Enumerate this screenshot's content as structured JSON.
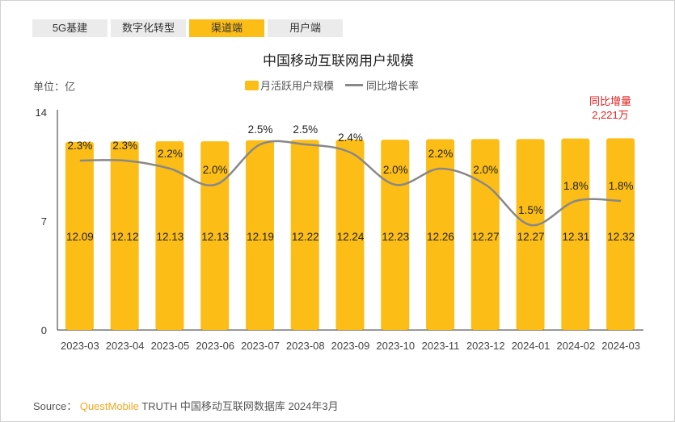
{
  "tabs": [
    {
      "label": "5G基建"
    },
    {
      "label": "数字化转型"
    },
    {
      "label": "渠道端",
      "active": true
    },
    {
      "label": "用户端"
    }
  ],
  "accent": "#fcbd16",
  "unit": "单位：亿",
  "note": {
    "line1": "同比增量",
    "line2": "2,221万"
  },
  "source": {
    "prefix": "Source：",
    "brand": "QuestMobile",
    "rest": "TRUTH 中国移动互联网数据库 2024年3月"
  },
  "chart_data": {
    "type": "bar",
    "title": "中国移动互联网用户规模",
    "categories": [
      "2023-03",
      "2023-04",
      "2023-05",
      "2023-06",
      "2023-07",
      "2023-08",
      "2023-09",
      "2023-10",
      "2023-11",
      "2023-12",
      "2024-01",
      "2024-02",
      "2024-03"
    ],
    "series": [
      {
        "name": "月活跃用户规模",
        "type": "bar",
        "color": "#fcbd16",
        "values": [
          12.09,
          12.12,
          12.13,
          12.13,
          12.19,
          12.22,
          12.24,
          12.23,
          12.26,
          12.27,
          12.27,
          12.31,
          12.32
        ]
      },
      {
        "name": "同比增长率",
        "type": "line",
        "color": "#888888",
        "unit": "%",
        "values": [
          2.3,
          2.3,
          2.2,
          2.0,
          2.5,
          2.5,
          2.4,
          2.0,
          2.2,
          2.0,
          1.5,
          1.8,
          1.8
        ]
      }
    ],
    "ylim": [
      0,
      14
    ],
    "yticks": [
      0,
      7,
      14
    ],
    "secondary_axis_hidden": true,
    "grid": false,
    "legend": "top-center"
  }
}
